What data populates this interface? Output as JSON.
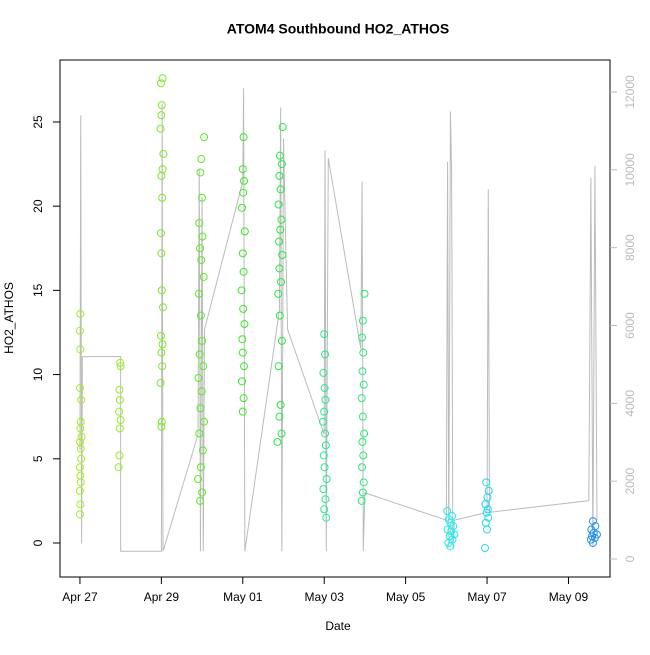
{
  "chart_data": {
    "type": "scatter",
    "title": "ATOM4 Southbound HO2_ATHOS",
    "x_label": "Date",
    "y_label": "HO2_ATHOS",
    "xlim": [
      -0.49,
      13.02
    ],
    "ylim": [
      -2.02,
      28.68
    ],
    "y2lim": [
      -462,
      12822
    ],
    "xticks": [
      {
        "value": 0,
        "label": "Apr 27"
      },
      {
        "value": 2,
        "label": "Apr 29"
      },
      {
        "value": 4,
        "label": "May 01"
      },
      {
        "value": 6,
        "label": "May 03"
      },
      {
        "value": 8,
        "label": "May 05"
      },
      {
        "value": 10,
        "label": "May 07"
      },
      {
        "value": 12,
        "label": "May 09"
      }
    ],
    "yticks": [
      0,
      5,
      10,
      15,
      20,
      25
    ],
    "y2ticks": [
      0,
      2000,
      4000,
      6000,
      8000,
      10000,
      12000
    ],
    "y2color": "#bbbbbb",
    "series": [
      {
        "color": "#a6ee20",
        "x": [
          0.0,
          0.01,
          0.0,
          0.02,
          0.01,
          0.0,
          0.03,
          0.02,
          0.0,
          0.04,
          0.01,
          0.02,
          0.03,
          0.0,
          0.01,
          0.0,
          0.01
        ],
        "values": [
          1.7,
          2.3,
          3.1,
          3.6,
          4.0,
          4.5,
          5.0,
          5.6,
          6.0,
          6.3,
          6.8,
          7.2,
          8.5,
          9.2,
          11.5,
          12.6,
          13.6
        ]
      },
      {
        "color": "#96ee20",
        "x": [
          0.95,
          0.97,
          0.98,
          1.0,
          0.96,
          0.98,
          0.97,
          1.0,
          0.99
        ],
        "values": [
          4.5,
          5.2,
          6.8,
          7.3,
          7.8,
          8.5,
          9.1,
          10.5,
          10.7
        ]
      },
      {
        "color": "#78ee20",
        "x": [
          2.0,
          2.01,
          1.98,
          2.02,
          2.0,
          2.03,
          1.99,
          2.04,
          2.01,
          2.0,
          1.99,
          2.02,
          2.0,
          2.03,
          2.05,
          1.98,
          2.0,
          2.01,
          1.99,
          2.03
        ],
        "values": [
          6.9,
          7.2,
          9.5,
          10.5,
          11.3,
          11.8,
          12.3,
          14.0,
          15.0,
          17.2,
          18.4,
          20.5,
          21.8,
          22.2,
          23.1,
          24.6,
          25.4,
          26.0,
          27.3,
          27.6
        ]
      },
      {
        "color": "#58ee20",
        "x": [
          2.95,
          3.0,
          2.9,
          2.97,
          3.02,
          2.93,
          3.05,
          2.96,
          2.99,
          2.91,
          3.03,
          2.94,
          3.0,
          2.97,
          2.92,
          3.04,
          2.98,
          2.95,
          3.01,
          2.93,
          3.0,
          2.96,
          2.98,
          3.05
        ],
        "values": [
          2.5,
          3.0,
          3.8,
          4.5,
          5.5,
          6.5,
          7.2,
          8.0,
          9.0,
          9.8,
          10.5,
          11.2,
          12.0,
          13.5,
          14.8,
          15.8,
          16.8,
          17.5,
          18.2,
          19.0,
          20.5,
          22.0,
          22.8,
          24.1
        ]
      },
      {
        "color": "#36ee20",
        "x": [
          4.0,
          4.02,
          3.98,
          4.03,
          4.0,
          3.99,
          4.04,
          4.01,
          3.97,
          4.02,
          4.0,
          4.05,
          3.98,
          4.01,
          4.03,
          4.0,
          4.02
        ],
        "values": [
          7.8,
          8.6,
          9.6,
          10.5,
          11.3,
          12.1,
          13.0,
          13.9,
          15.0,
          16.1,
          17.2,
          18.5,
          19.9,
          20.8,
          21.5,
          22.2,
          24.1
        ]
      },
      {
        "color": "#20ee40",
        "x": [
          4.85,
          4.95,
          4.9,
          4.93,
          4.88,
          4.96,
          4.91,
          4.87,
          4.94,
          4.9,
          4.97,
          4.89,
          4.92,
          4.95,
          4.88,
          4.93,
          4.9,
          4.96,
          4.91,
          4.98
        ],
        "values": [
          6.0,
          6.5,
          7.5,
          8.2,
          10.5,
          12.0,
          13.5,
          14.8,
          15.5,
          16.3,
          17.1,
          17.9,
          18.6,
          19.2,
          20.1,
          21.0,
          21.8,
          22.5,
          23.0,
          24.7
        ]
      },
      {
        "color": "#20ee90",
        "x": [
          6.05,
          6.0,
          6.03,
          5.98,
          6.06,
          6.01,
          5.99,
          6.04,
          6.02,
          5.97,
          6.0,
          6.03,
          6.01,
          5.98,
          6.02,
          6.0
        ],
        "values": [
          1.5,
          2.0,
          2.6,
          3.2,
          3.8,
          4.5,
          5.2,
          5.8,
          6.5,
          7.2,
          7.8,
          8.5,
          9.2,
          10.1,
          11.2,
          12.4
        ]
      },
      {
        "color": "#20ee78",
        "x": [
          6.92,
          6.95,
          6.97,
          6.93,
          6.96,
          6.94,
          6.98,
          6.95,
          6.92,
          6.97,
          6.94,
          6.96,
          6.93,
          6.95,
          6.99
        ],
        "values": [
          2.5,
          3.0,
          3.6,
          4.5,
          5.2,
          6.0,
          6.5,
          7.5,
          8.6,
          9.4,
          10.2,
          11.3,
          12.2,
          13.2,
          14.8
        ]
      },
      {
        "color": "#20eeee",
        "x": [
          9.1,
          9.05,
          9.15,
          9.08,
          9.2,
          9.12,
          9.03,
          9.17,
          9.1,
          9.06,
          9.14,
          9.02
        ],
        "values": [
          -0.2,
          0.0,
          0.2,
          0.4,
          0.5,
          0.7,
          0.8,
          1.0,
          1.2,
          1.4,
          1.6,
          1.9
        ]
      },
      {
        "color": "#20d8f0",
        "x": [
          9.95,
          10.0,
          9.97,
          10.03,
          9.99,
          10.02,
          9.96,
          10.01,
          10.04,
          9.98
        ],
        "values": [
          -0.3,
          0.8,
          1.2,
          1.5,
          1.8,
          2.0,
          2.3,
          2.7,
          3.1,
          3.6
        ]
      },
      {
        "color": "#2094f0",
        "x": [
          12.6,
          12.55,
          12.65,
          12.58,
          12.7,
          12.62,
          12.56,
          12.66,
          12.6
        ],
        "values": [
          0.0,
          0.2,
          0.3,
          0.4,
          0.5,
          0.6,
          0.8,
          1.0,
          1.3
        ]
      },
      {
        "color": "#bbbbbb",
        "axis": "y2",
        "x": [
          0,
          0.02,
          0.04,
          0.06,
          1.0,
          1.0,
          2.0,
          2.02,
          2.04,
          2.9,
          2.93,
          2.96,
          3.0,
          3.03,
          3.06,
          4.0,
          4.02,
          4.05,
          4.9,
          4.93,
          4.96,
          5.0,
          5.1,
          6.0,
          6.02,
          6.05,
          6.1,
          6.9,
          6.93,
          6.96,
          7.0,
          9.0,
          9.03,
          9.06,
          9.1,
          9.13,
          9.16,
          9.2,
          10.0,
          10.03,
          10.06,
          12.5,
          12.55,
          12.6,
          12.65,
          12.7
        ],
        "values": [
          2800,
          11400,
          400,
          5200,
          5200,
          200,
          200,
          11700,
          200,
          3200,
          10000,
          200,
          9300,
          200,
          5900,
          9700,
          12100,
          200,
          6400,
          11600,
          200,
          10800,
          5900,
          3200,
          10500,
          200,
          10300,
          5400,
          9700,
          200,
          1700,
          1000,
          10200,
          300,
          11500,
          9900,
          300,
          1000,
          1200,
          9500,
          1200,
          1500,
          9800,
          300,
          10100,
          1000
        ]
      }
    ]
  }
}
